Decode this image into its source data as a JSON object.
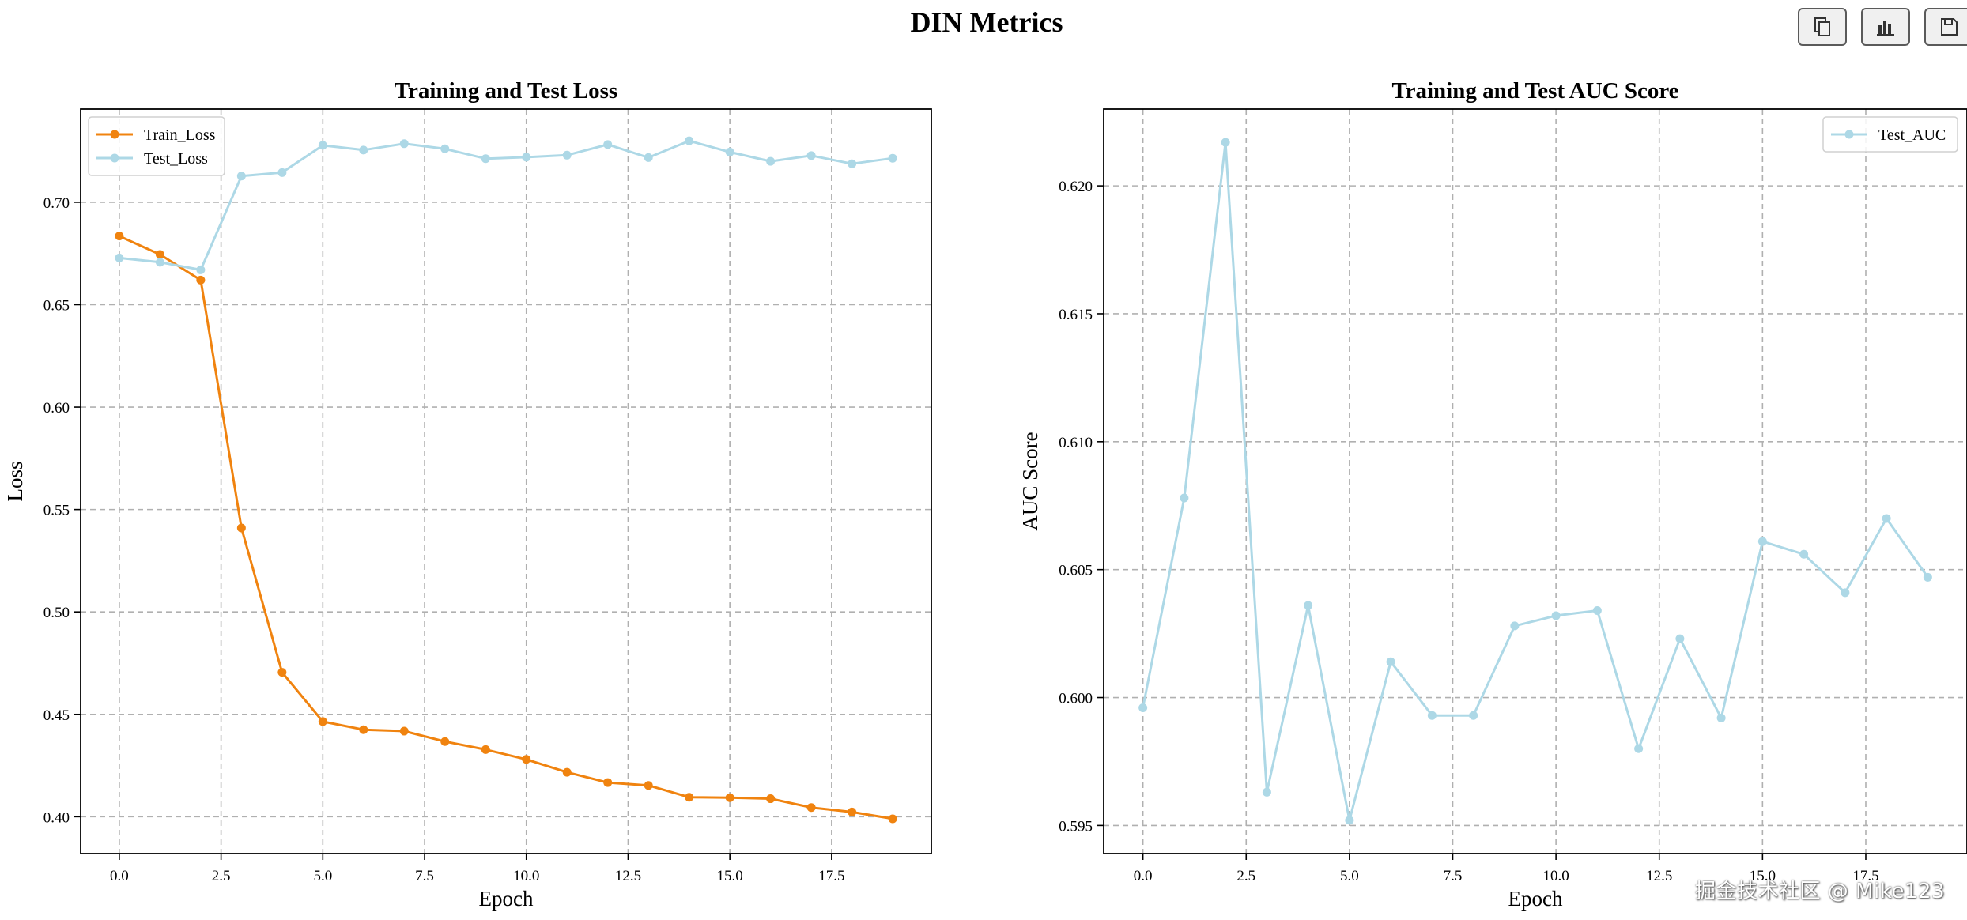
{
  "figure": {
    "title": "DIN Metrics"
  },
  "toolbar": {
    "buttons": [
      {
        "icon": "copy-icon"
      },
      {
        "icon": "bar-chart-icon"
      },
      {
        "icon": "save-icon"
      }
    ]
  },
  "watermark": "掘金技术社区 @ Mike123",
  "colors": {
    "train": "#f0830f",
    "test": "#add8e6",
    "grid": "#b0b0b0",
    "axes": "#000000"
  },
  "chart_data": [
    {
      "type": "line",
      "title": "Training and Test Loss",
      "xlabel": "Epoch",
      "ylabel": "Loss",
      "x": [
        0,
        1,
        2,
        3,
        4,
        5,
        6,
        7,
        8,
        9,
        10,
        11,
        12,
        13,
        14,
        15,
        16,
        17,
        18,
        19
      ],
      "xlim": [
        -0.95,
        19.95
      ],
      "ylim": [
        0.382,
        0.7455
      ],
      "xticks": [
        0.0,
        2.5,
        5.0,
        7.5,
        10.0,
        12.5,
        15.0,
        17.5
      ],
      "xticklabels": [
        "0.0",
        "2.5",
        "5.0",
        "7.5",
        "10.0",
        "12.5",
        "15.0",
        "17.5"
      ],
      "yticks": [
        0.4,
        0.45,
        0.5,
        0.55,
        0.6,
        0.65,
        0.7
      ],
      "yticklabels": [
        "0.40",
        "0.45",
        "0.50",
        "0.55",
        "0.60",
        "0.65",
        "0.70"
      ],
      "grid": true,
      "legend": "upper-left",
      "series": [
        {
          "name": "Train_Loss",
          "color": "#f0830f",
          "values": [
            0.6835,
            0.6745,
            0.662,
            0.541,
            0.4705,
            0.4465,
            0.4425,
            0.4418,
            0.4367,
            0.4328,
            0.428,
            0.4217,
            0.4167,
            0.4153,
            0.4095,
            0.4093,
            0.4088,
            0.4045,
            0.4023,
            0.399
          ]
        },
        {
          "name": "Test_Loss",
          "color": "#add8e6",
          "values": [
            0.6728,
            0.6707,
            0.667,
            0.7128,
            0.7145,
            0.7278,
            0.7255,
            0.7286,
            0.7261,
            0.7213,
            0.722,
            0.723,
            0.7282,
            0.7218,
            0.73,
            0.7245,
            0.72,
            0.7228,
            0.7188,
            0.7215
          ]
        }
      ]
    },
    {
      "type": "line",
      "title": "Training and Test AUC Score",
      "xlabel": "Epoch",
      "ylabel": "AUC Score",
      "x": [
        0,
        1,
        2,
        3,
        4,
        5,
        6,
        7,
        8,
        9,
        10,
        11,
        12,
        13,
        14,
        15,
        16,
        17,
        18,
        19
      ],
      "xlim": [
        -0.95,
        19.95
      ],
      "ylim": [
        0.5939,
        0.623
      ],
      "xticks": [
        0.0,
        2.5,
        5.0,
        7.5,
        10.0,
        12.5,
        15.0,
        17.5
      ],
      "xticklabels": [
        "0.0",
        "2.5",
        "5.0",
        "7.5",
        "10.0",
        "12.5",
        "15.0",
        "17.5"
      ],
      "yticks": [
        0.595,
        0.6,
        0.605,
        0.61,
        0.615,
        0.62
      ],
      "yticklabels": [
        "0.595",
        "0.600",
        "0.605",
        "0.610",
        "0.615",
        "0.620"
      ],
      "grid": true,
      "legend": "upper-right",
      "series": [
        {
          "name": "Test_AUC",
          "color": "#add8e6",
          "values": [
            0.5996,
            0.6078,
            0.6217,
            0.5963,
            0.6036,
            0.5952,
            0.6014,
            0.5993,
            0.5993,
            0.6028,
            0.6032,
            0.6034,
            0.598,
            0.6023,
            0.5992,
            0.6061,
            0.6056,
            0.6041,
            0.607,
            0.6047
          ]
        }
      ]
    }
  ]
}
